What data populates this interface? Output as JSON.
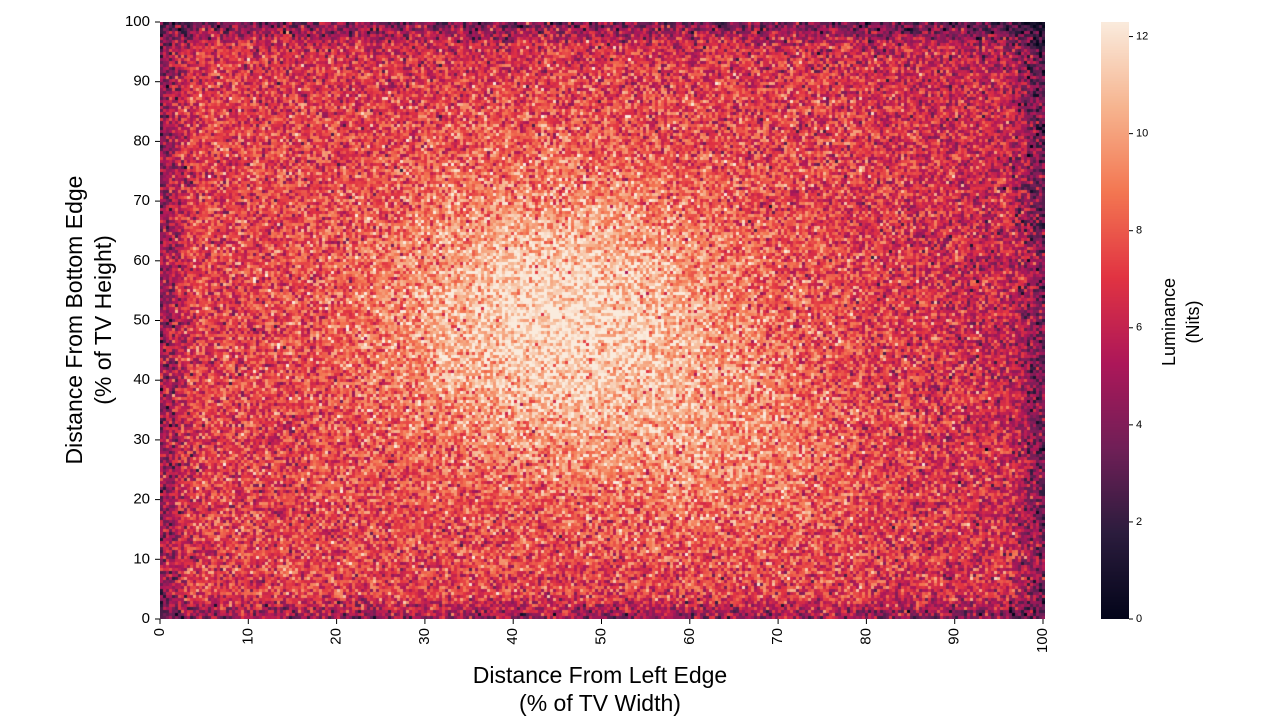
{
  "chart_data": {
    "type": "heatmap",
    "title": "",
    "xlabel": [
      "Distance From Left Edge",
      "(% of TV Width)"
    ],
    "ylabel": [
      "Distance From Bottom Edge",
      "(% of TV Height)"
    ],
    "colorbar_label": [
      "Luminance",
      "(Nits)"
    ],
    "x_ticks": [
      "0",
      "10",
      "20",
      "30",
      "40",
      "50",
      "60",
      "70",
      "80",
      "90",
      "100"
    ],
    "y_ticks": [
      "0",
      "10",
      "20",
      "30",
      "40",
      "50",
      "60",
      "70",
      "80",
      "90",
      "100"
    ],
    "colorbar_ticks": [
      "0",
      "2",
      "4",
      "6",
      "8",
      "10",
      "12"
    ],
    "xlim": [
      0,
      100
    ],
    "ylim": [
      0,
      100
    ],
    "value_range": [
      0,
      12.3
    ],
    "colormap": "rocket",
    "colormap_stops": [
      "#03051a",
      "#2b1c3d",
      "#701f57",
      "#ad1759",
      "#e13342",
      "#f37651",
      "#f6b48f",
      "#faebdd"
    ],
    "grid": false,
    "luminance_model": {
      "peak_nits": 12.1,
      "peak_center": [
        45,
        50
      ],
      "secondary_lobe_center": [
        65,
        28
      ],
      "edge_nits": 3.0,
      "min_edge_nits_corners": 1.5,
      "noise_nits": 1.6
    }
  }
}
